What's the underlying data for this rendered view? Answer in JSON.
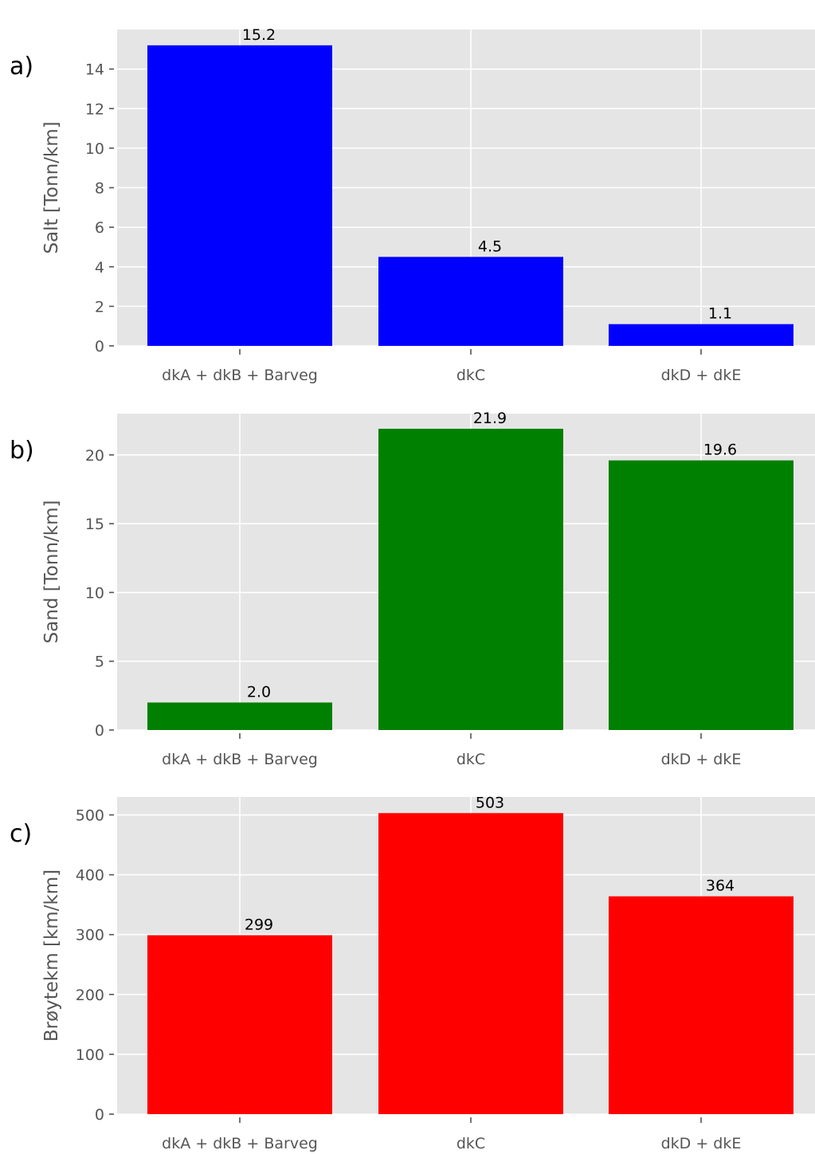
{
  "chart_data": [
    {
      "type": "bar",
      "panel_label": "a)",
      "categories": [
        "dkA + dkB + Barveg",
        "dkC",
        "dkD + dkE"
      ],
      "values": [
        15.2,
        4.5,
        1.1
      ],
      "value_labels": [
        "15.2",
        "4.5",
        "1.1"
      ],
      "color": "#0000ff",
      "ylabel": "Salt [Tonn/km]",
      "ylim": [
        0,
        16
      ],
      "yticks": [
        0,
        2,
        4,
        6,
        8,
        10,
        12,
        14
      ],
      "grid": true,
      "background": "#e5e5e5"
    },
    {
      "type": "bar",
      "panel_label": "b)",
      "categories": [
        "dkA + dkB + Barveg",
        "dkC",
        "dkD + dkE"
      ],
      "values": [
        2.0,
        21.9,
        19.6
      ],
      "value_labels": [
        "2.0",
        "21.9",
        "19.6"
      ],
      "color": "#008000",
      "ylabel": "Sand [Tonn/km]",
      "ylim": [
        0,
        23
      ],
      "yticks": [
        0,
        5,
        10,
        15,
        20
      ],
      "grid": true,
      "background": "#e5e5e5"
    },
    {
      "type": "bar",
      "panel_label": "c)",
      "categories": [
        "dkA + dkB + Barveg",
        "dkC",
        "dkD + dkE"
      ],
      "values": [
        299,
        503,
        364
      ],
      "value_labels": [
        "299",
        "503",
        "364"
      ],
      "color": "#ff0000",
      "ylabel": "Brøytekm [km/km]",
      "ylim": [
        0,
        530
      ],
      "yticks": [
        0,
        100,
        200,
        300,
        400,
        500
      ],
      "grid": true,
      "background": "#e5e5e5"
    }
  ]
}
